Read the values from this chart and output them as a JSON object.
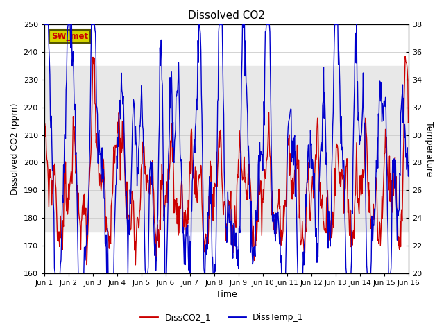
{
  "title": "Dissolved CO2",
  "xlabel": "Time",
  "ylabel_left": "Dissolved CO2 (ppm)",
  "ylabel_right": "Temperature",
  "xlim": [
    0,
    15
  ],
  "ylim_left": [
    160,
    250
  ],
  "ylim_right": [
    20,
    38
  ],
  "yticks_left": [
    160,
    170,
    180,
    190,
    200,
    210,
    220,
    230,
    240,
    250
  ],
  "yticks_right": [
    20,
    22,
    24,
    26,
    28,
    30,
    32,
    34,
    36,
    38
  ],
  "xtick_labels": [
    "Jun 1",
    "Jun 2",
    "Jun 3",
    "Jun 4",
    "Jun 5",
    "Jun 6",
    "Jun 7",
    "Jun 8",
    "Jun 9",
    "Jun 10",
    "Jun 11",
    "Jun 12",
    "Jun 13",
    "Jun 14",
    "Jun 15",
    "Jun 16"
  ],
  "xtick_positions": [
    0,
    1,
    2,
    3,
    4,
    5,
    6,
    7,
    8,
    9,
    10,
    11,
    12,
    13,
    14,
    15
  ],
  "shade_ylim": [
    175,
    235
  ],
  "shade_color": "#e8e8e8",
  "line_co2_color": "#cc0000",
  "line_temp_color": "#0000cc",
  "line_width": 1.0,
  "sw_met_label": "SW_met",
  "sw_met_bg": "#d4d400",
  "sw_met_border": "#555500",
  "legend_co2": "DissCO2_1",
  "legend_temp": "DissTemp_1",
  "background_color": "#ffffff",
  "n_points": 720,
  "seed": 99
}
